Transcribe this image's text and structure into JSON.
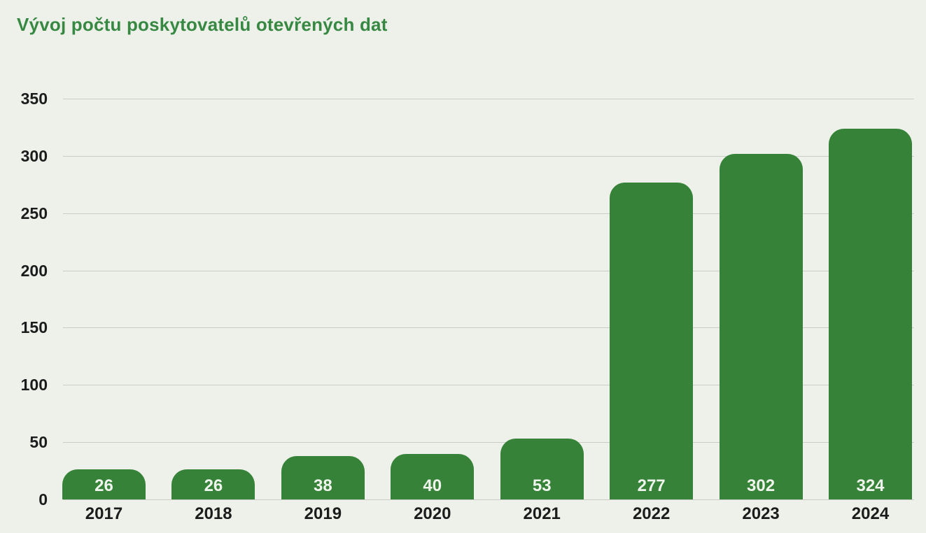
{
  "title": "Vývoj počtu poskytovatelů otevřených dat",
  "chart_data": {
    "type": "bar",
    "title": "Vývoj počtu poskytovatelů otevřených dat",
    "categories": [
      "2017",
      "2018",
      "2019",
      "2020",
      "2021",
      "2022",
      "2023",
      "2024"
    ],
    "values": [
      26,
      26,
      38,
      40,
      53,
      277,
      302,
      324
    ],
    "bar_labels": [
      "26",
      "26",
      "38",
      "40",
      "53",
      "277",
      "302",
      "324"
    ],
    "xlabel": "",
    "ylabel": "",
    "ylim": [
      0,
      350
    ],
    "y_ticks": [
      0,
      50,
      100,
      150,
      200,
      250,
      300,
      350
    ],
    "grid": true,
    "legend_position": "none",
    "bar_label_position": "inside-bottom"
  },
  "colors": {
    "background": "#eef1ea",
    "bar": "#358238",
    "title": "#378842",
    "gridline": "#c9cdc5",
    "axis_text": "#1c1c1c",
    "bar_label_text": "#eff4ec"
  }
}
